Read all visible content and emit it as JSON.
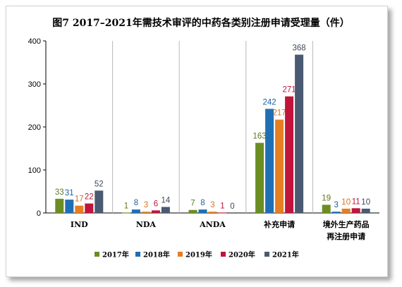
{
  "chart_data": {
    "type": "bar",
    "title": "图7 2017–2021年需技术审评的中药各类别注册申请受理量（件）",
    "categories": [
      "IND",
      "NDA",
      "ANDA",
      "补充申请",
      "境外生产药品|再注册申请"
    ],
    "series": [
      {
        "name": "2017年",
        "values": [
          33,
          1,
          7,
          163,
          19
        ]
      },
      {
        "name": "2018年",
        "values": [
          31,
          8,
          8,
          242,
          3
        ]
      },
      {
        "name": "2019年",
        "values": [
          17,
          3,
          3,
          217,
          10
        ]
      },
      {
        "name": "2020年",
        "values": [
          22,
          6,
          1,
          271,
          11
        ]
      },
      {
        "name": "2021年",
        "values": [
          52,
          14,
          0,
          368,
          10
        ]
      }
    ],
    "ylim": [
      0,
      400
    ],
    "yticks": [
      0,
      100,
      200,
      300,
      400
    ],
    "xlabel": "",
    "ylabel": "",
    "legend_position": "bottom",
    "colors": [
      "#6b8e23",
      "#1f6fb5",
      "#e67e22",
      "#c0143c",
      "#4a5a72"
    ],
    "label_colors": [
      "#5a7a1e",
      "#1f5fa0",
      "#d4731e",
      "#c0143c",
      "#3d4a5e"
    ]
  }
}
